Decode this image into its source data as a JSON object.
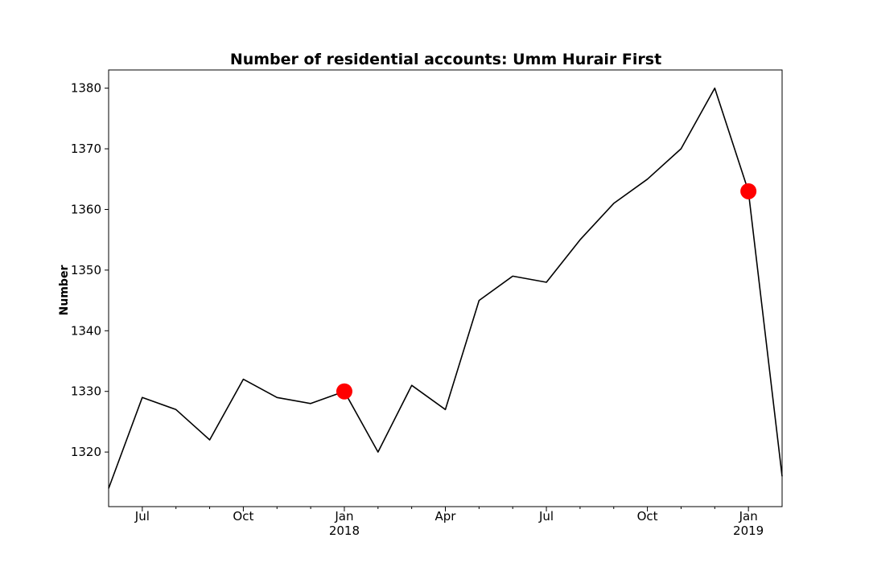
{
  "chart_data": {
    "type": "line",
    "title": "Number of residential accounts: Umm Hurair First",
    "xlabel": "",
    "ylabel": "Number",
    "series": [
      {
        "x": [
          "2017-06",
          "2017-07",
          "2017-08",
          "2017-09",
          "2017-10",
          "2017-11",
          "2017-12",
          "2018-01",
          "2018-02",
          "2018-03",
          "2018-04",
          "2018-05",
          "2018-06",
          "2018-07",
          "2018-08",
          "2018-09",
          "2018-10",
          "2018-11",
          "2018-12",
          "2019-01",
          "2019-02"
        ],
        "values": [
          1314,
          1329,
          1327,
          1322,
          1332,
          1329,
          1328,
          1330,
          1320,
          1331,
          1327,
          1345,
          1349,
          1348,
          1355,
          1361,
          1365,
          1370,
          1380,
          1363,
          1316
        ],
        "color": "#000000"
      }
    ],
    "highlights": [
      {
        "x": "2018-01",
        "value": 1330,
        "color": "#ff0000"
      },
      {
        "x": "2019-01",
        "value": 1363,
        "color": "#ff0000"
      }
    ],
    "xlim": [
      "2017-06",
      "2019-02"
    ],
    "ylim": [
      1311,
      1383
    ],
    "yticks": [
      1320,
      1330,
      1340,
      1350,
      1360,
      1370,
      1380
    ],
    "xticks": [
      {
        "x": "2017-07",
        "label": "Jul",
        "sublabel": ""
      },
      {
        "x": "2017-10",
        "label": "Oct",
        "sublabel": ""
      },
      {
        "x": "2018-01",
        "label": "Jan",
        "sublabel": "2018"
      },
      {
        "x": "2018-04",
        "label": "Apr",
        "sublabel": ""
      },
      {
        "x": "2018-07",
        "label": "Jul",
        "sublabel": ""
      },
      {
        "x": "2018-10",
        "label": "Oct",
        "sublabel": ""
      },
      {
        "x": "2019-01",
        "label": "Jan",
        "sublabel": "2019"
      }
    ],
    "minor_ticks": [
      "2017-08",
      "2017-09",
      "2017-11",
      "2017-12",
      "2018-02",
      "2018-03",
      "2018-05",
      "2018-06",
      "2018-08",
      "2018-09",
      "2018-11",
      "2018-12"
    ],
    "grid": false,
    "legend": "none"
  }
}
